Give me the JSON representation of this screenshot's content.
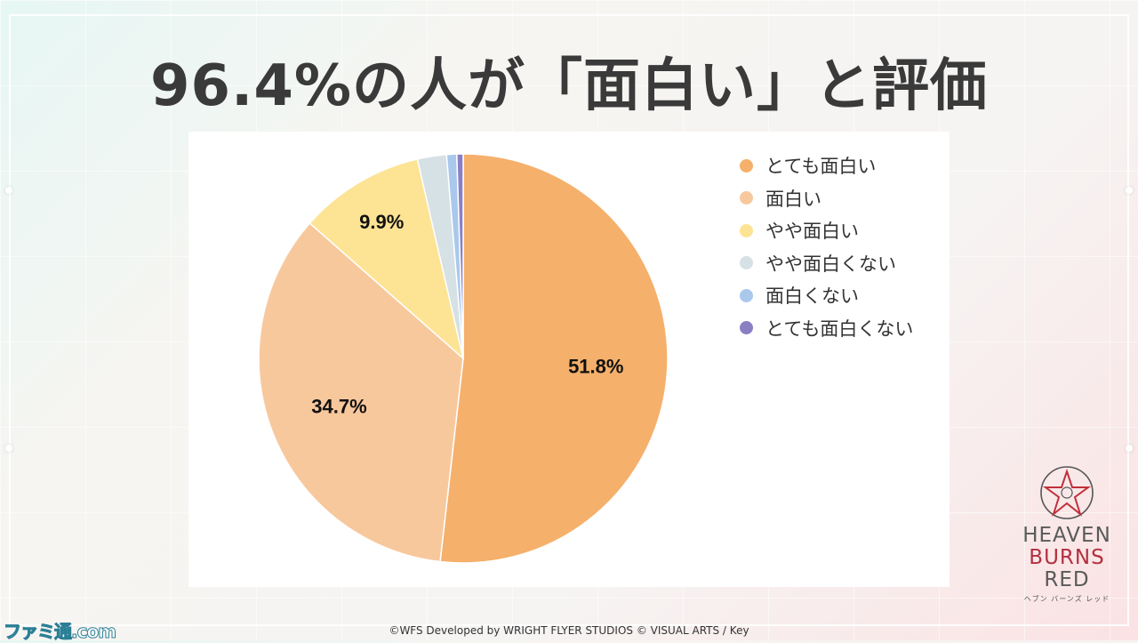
{
  "title": "96.4%の人が「面白い」と評価",
  "chart_data": {
    "type": "pie",
    "categories": [
      "とても面白い",
      "面白い",
      "やや面白い",
      "やや面白くない",
      "面白くない",
      "とても面白くない"
    ],
    "values": [
      51.8,
      34.7,
      9.9,
      2.3,
      0.8,
      0.5
    ],
    "data_labels": [
      "51.8%",
      "34.7%",
      "9.9%",
      "",
      "",
      ""
    ],
    "colors": [
      "#f5b06b",
      "#f8c89d",
      "#fde394",
      "#d5e1e4",
      "#a9c8ec",
      "#8b7fc4"
    ],
    "legend_position": "right"
  },
  "logo": {
    "lines": [
      "HEAVEN",
      "BURNS",
      "RED"
    ],
    "subtitle": "ヘブン バーンズ レッド"
  },
  "watermark": "ファミ通.com",
  "copyright": "©WFS Developed by WRIGHT FLYER STUDIOS  © VISUAL ARTS / Key"
}
